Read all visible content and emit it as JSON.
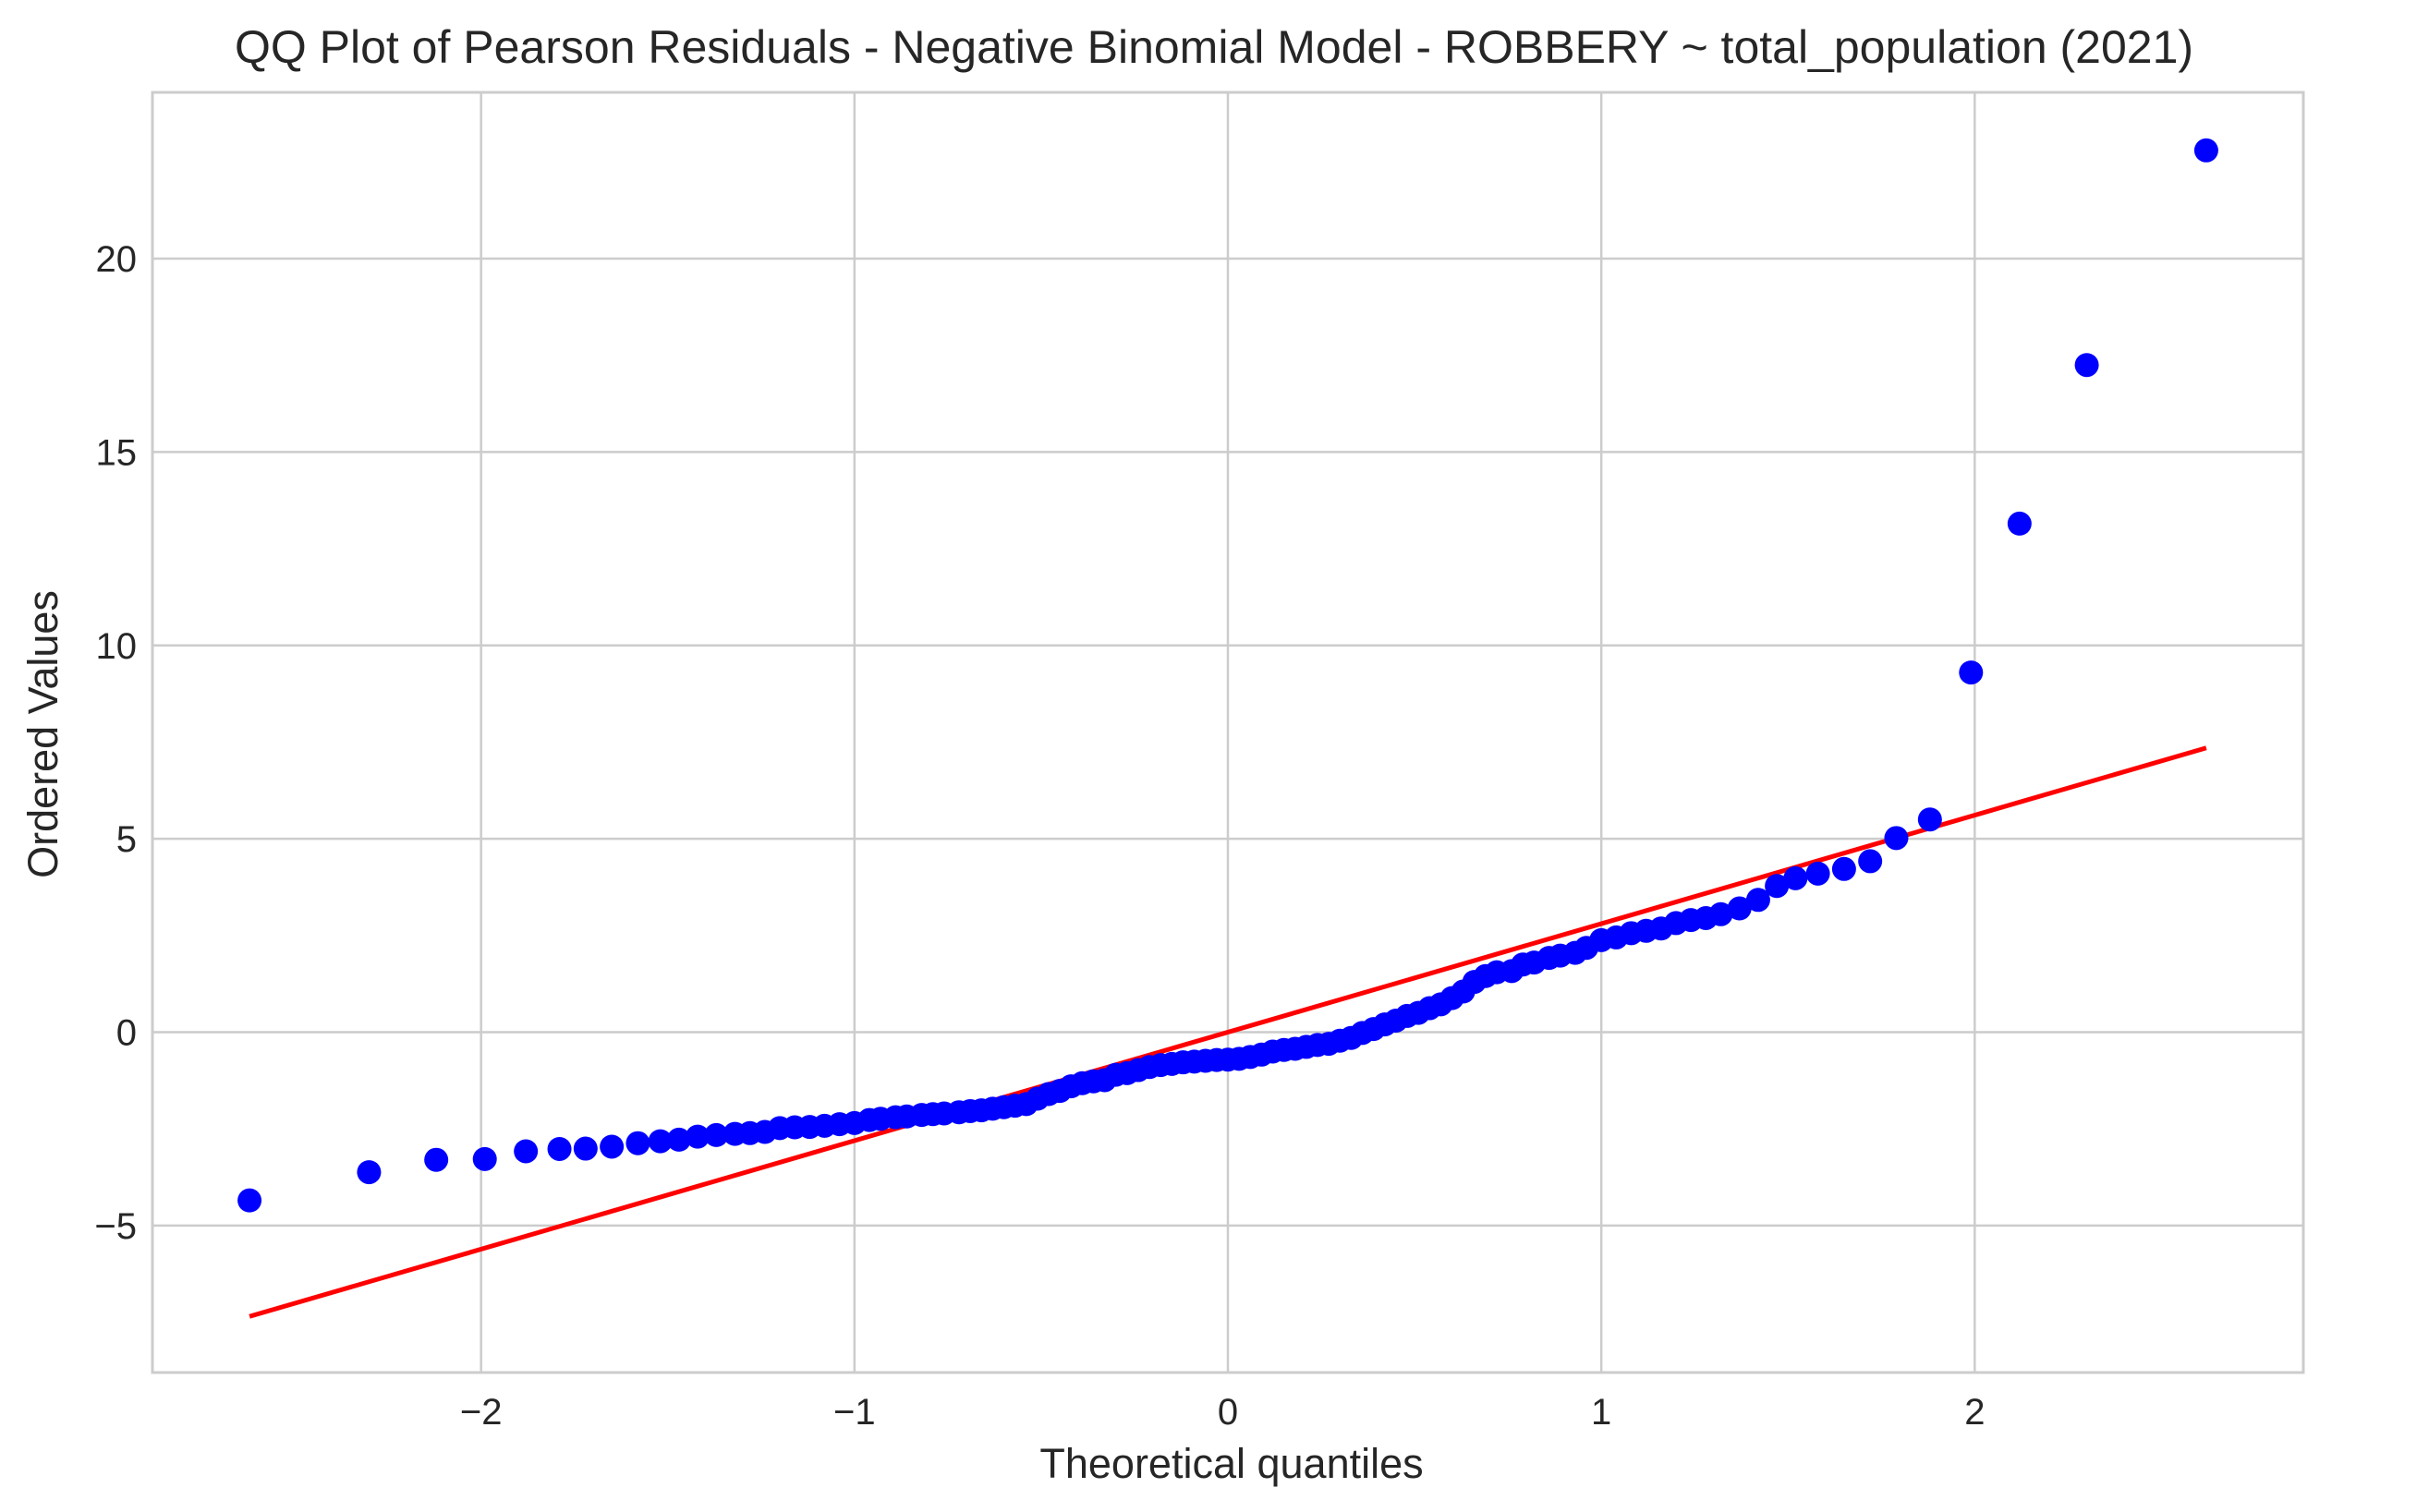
{
  "chart_data": {
    "type": "scatter",
    "title": "QQ Plot of Pearson Residuals - Negative Binomial Model - ROBBERY ~ total_population (2021)",
    "xlabel": "Theoretical quantiles",
    "ylabel": "Ordered Values",
    "xlim": [
      -2.88,
      2.88
    ],
    "ylim": [
      -8.8,
      24.3
    ],
    "grid": true,
    "x_ticks": [
      -2,
      -1,
      0,
      1,
      2
    ],
    "x_tick_labels": [
      "−2",
      "−1",
      "0",
      "1",
      "2"
    ],
    "y_ticks": [
      -5,
      0,
      5,
      10,
      15,
      20
    ],
    "y_tick_labels": [
      "−5",
      "0",
      "5",
      "10",
      "15",
      "20"
    ],
    "colors": {
      "points": "#0000ff",
      "fit_line": "#ff0000",
      "grid": "#cccccc",
      "text": "#262626"
    },
    "fit_line": {
      "x": [
        -2.62,
        2.62
      ],
      "y": [
        -7.35,
        7.35
      ]
    },
    "points": {
      "x": [
        -2.62,
        -2.3,
        -2.12,
        -1.99,
        -1.88,
        -1.79,
        -1.72,
        -1.65,
        -1.58,
        -1.52,
        -1.47,
        -1.42,
        -1.37,
        -1.32,
        -1.28,
        -1.24,
        -1.2,
        -1.16,
        -1.12,
        -1.08,
        -1.04,
        -1.0,
        -0.96,
        -0.93,
        -0.89,
        -0.86,
        -0.82,
        -0.79,
        -0.76,
        -0.72,
        -0.69,
        -0.66,
        -0.63,
        -0.6,
        -0.57,
        -0.54,
        -0.51,
        -0.48,
        -0.45,
        -0.42,
        -0.39,
        -0.36,
        -0.33,
        -0.3,
        -0.27,
        -0.24,
        -0.21,
        -0.18,
        -0.15,
        -0.12,
        -0.09,
        -0.06,
        -0.03,
        0.0,
        0.03,
        0.06,
        0.09,
        0.12,
        0.15,
        0.18,
        0.21,
        0.24,
        0.27,
        0.3,
        0.33,
        0.36,
        0.39,
        0.42,
        0.45,
        0.48,
        0.51,
        0.54,
        0.57,
        0.6,
        0.63,
        0.66,
        0.69,
        0.72,
        0.76,
        0.79,
        0.82,
        0.86,
        0.89,
        0.93,
        0.96,
        1.0,
        1.04,
        1.08,
        1.12,
        1.16,
        1.2,
        1.24,
        1.28,
        1.32,
        1.37,
        1.42,
        1.47,
        1.52,
        1.58,
        1.65,
        1.72,
        1.79,
        1.88,
        1.99,
        2.12,
        2.3,
        2.62
      ],
      "y": [
        -4.35,
        -3.62,
        -3.3,
        -3.28,
        -3.08,
        -3.02,
        -3.01,
        -2.96,
        -2.87,
        -2.82,
        -2.78,
        -2.7,
        -2.66,
        -2.63,
        -2.61,
        -2.58,
        -2.48,
        -2.46,
        -2.45,
        -2.42,
        -2.38,
        -2.35,
        -2.27,
        -2.24,
        -2.2,
        -2.18,
        -2.14,
        -2.12,
        -2.1,
        -2.07,
        -2.04,
        -2.02,
        -1.98,
        -1.94,
        -1.9,
        -1.86,
        -1.72,
        -1.6,
        -1.52,
        -1.4,
        -1.32,
        -1.27,
        -1.24,
        -1.1,
        -1.06,
        -0.98,
        -0.9,
        -0.85,
        -0.82,
        -0.78,
        -0.76,
        -0.74,
        -0.72,
        -0.71,
        -0.69,
        -0.64,
        -0.58,
        -0.5,
        -0.46,
        -0.43,
        -0.38,
        -0.33,
        -0.3,
        -0.22,
        -0.15,
        -0.02,
        0.08,
        0.2,
        0.3,
        0.42,
        0.5,
        0.62,
        0.72,
        0.88,
        1.05,
        1.3,
        1.45,
        1.55,
        1.58,
        1.75,
        1.8,
        1.92,
        1.98,
        2.05,
        2.18,
        2.38,
        2.45,
        2.56,
        2.62,
        2.68,
        2.82,
        2.9,
        2.95,
        3.05,
        3.2,
        3.42,
        3.78,
        3.98,
        4.1,
        4.22,
        4.42,
        5.02,
        5.5,
        9.3,
        13.15,
        17.25,
        22.8
      ]
    }
  }
}
